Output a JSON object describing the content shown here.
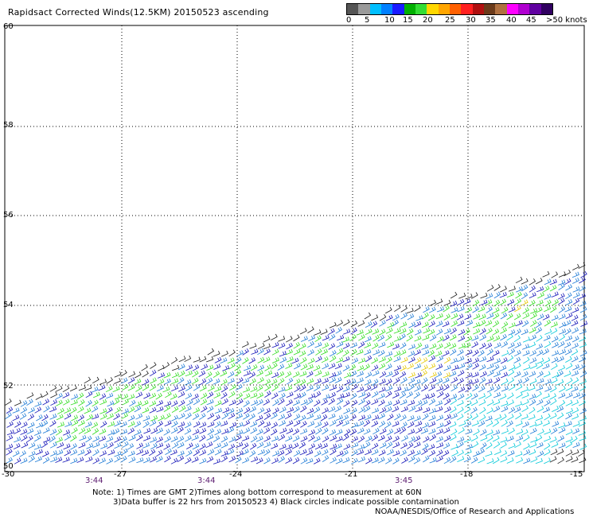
{
  "header": {
    "title": "Rapidsact Corrected Winds(12.5KM) 20150523 ascending"
  },
  "legend": {
    "labels": [
      "0",
      "5",
      "10",
      "15",
      "20",
      "25",
      "30",
      "35",
      "40",
      "45",
      ">50 knots"
    ],
    "colors": [
      "#555555",
      "#9a9a9a",
      "#00bfff",
      "#0080ff",
      "#1a1aff",
      "#00b000",
      "#33dd33",
      "#ffd700",
      "#ffa500",
      "#ff6000",
      "#ff2020",
      "#b01010",
      "#6b3a1a",
      "#b07040",
      "#ff00ff",
      "#b000d0",
      "#6000a0",
      "#300060"
    ]
  },
  "map": {
    "lat_labels": [
      "60",
      "58",
      "56",
      "54",
      "52",
      "50"
    ],
    "lon_labels": [
      "-30",
      "-27",
      "-24",
      "-21",
      "-18",
      "-15"
    ],
    "time_labels": [
      "3:44",
      "3:44",
      "3:45"
    ],
    "wind_colors": {
      "calm": "#1a1a1a",
      "light": "#00c8d8",
      "moderate": "#1e7bd6",
      "strong": "#1515b8",
      "fresh": "#33dd22",
      "gale": "#e6c800"
    }
  },
  "footer": {
    "note_line1": "Note: 1) Times are GMT 2)Times along bottom correspond to measurement at 60N",
    "note_line2": "3)Data buffer is 22 hrs from 20150523 4) Black circles indicate possible contamination",
    "credit": "NOAA/NESDIS/Office of Research and Applications"
  }
}
